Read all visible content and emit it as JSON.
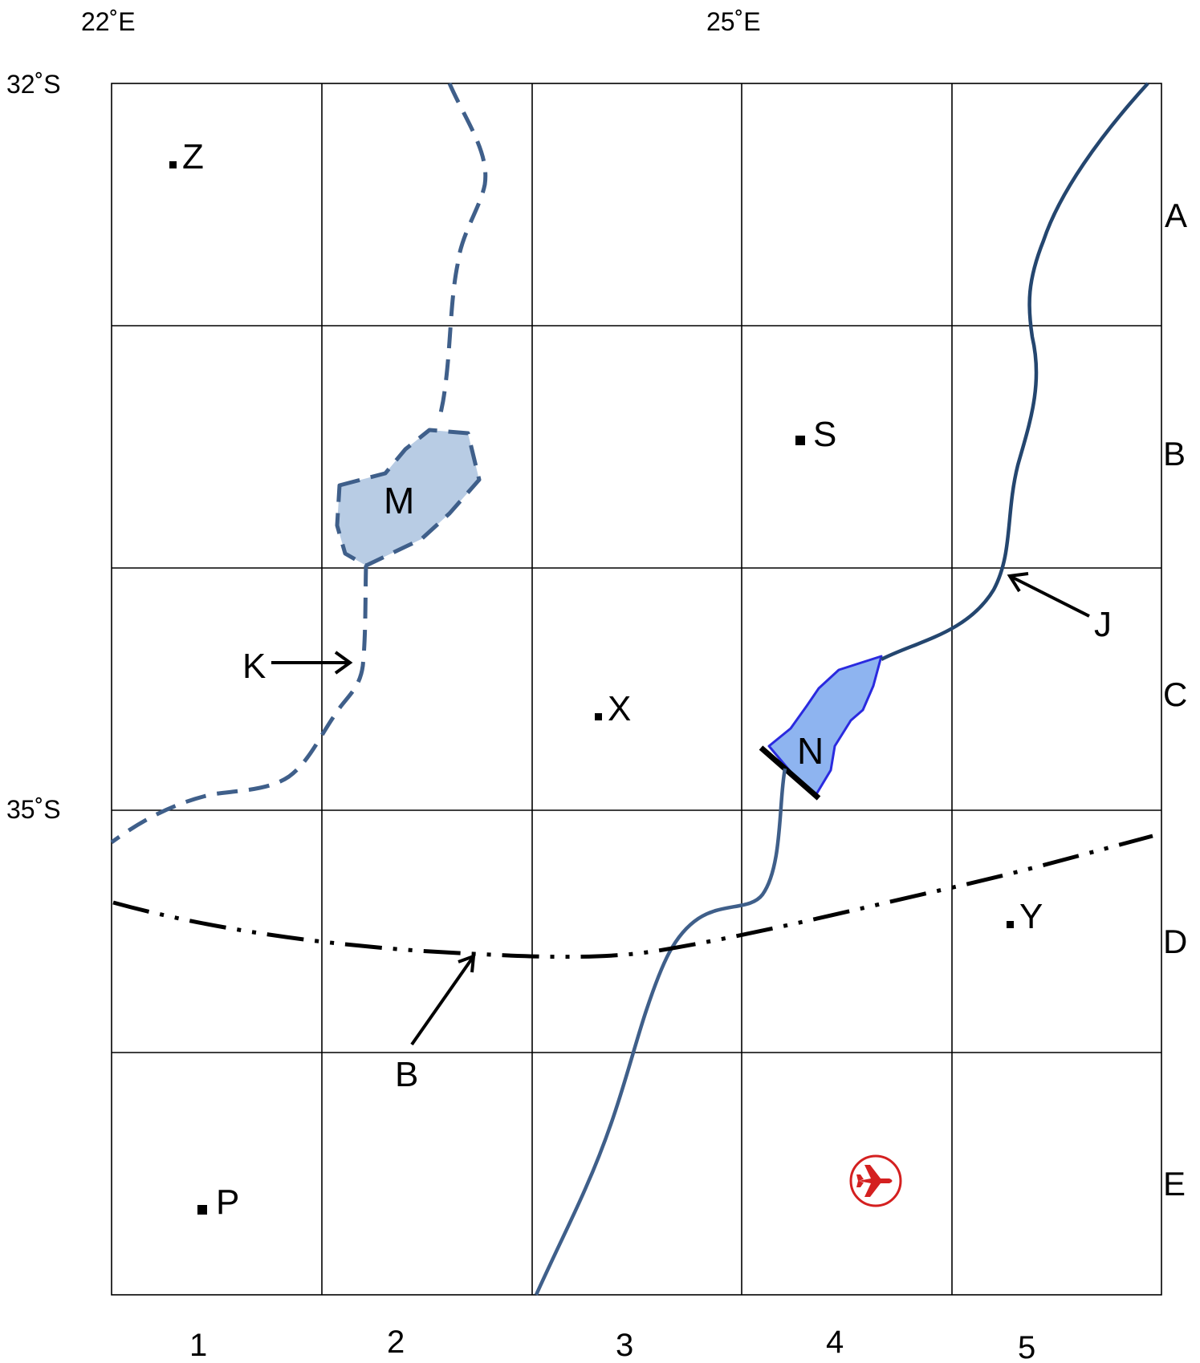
{
  "map": {
    "longitude_labels": [
      "22˚E",
      "25˚E"
    ],
    "latitude_labels": [
      "32˚S",
      "35˚S"
    ],
    "column_labels": [
      "1",
      "2",
      "3",
      "4",
      "5"
    ],
    "row_labels": [
      "A",
      "B",
      "C",
      "D",
      "E"
    ],
    "places": {
      "z": "Z",
      "s": "S",
      "x": "X",
      "y": "Y",
      "p": "P"
    },
    "features": {
      "m": "M",
      "n": "N",
      "k": "K",
      "j": "J",
      "b": "B"
    },
    "icons": {
      "airport": "airport-icon"
    },
    "colors": {
      "river": "#3f5f8a",
      "river_dark": "#24466f",
      "lake_m_fill": "#b8cce4",
      "lake_n_fill": "#8eb4f0",
      "lake_n_border": "#2a2adf",
      "airport": "#d42020",
      "grid": "#000000"
    }
  }
}
